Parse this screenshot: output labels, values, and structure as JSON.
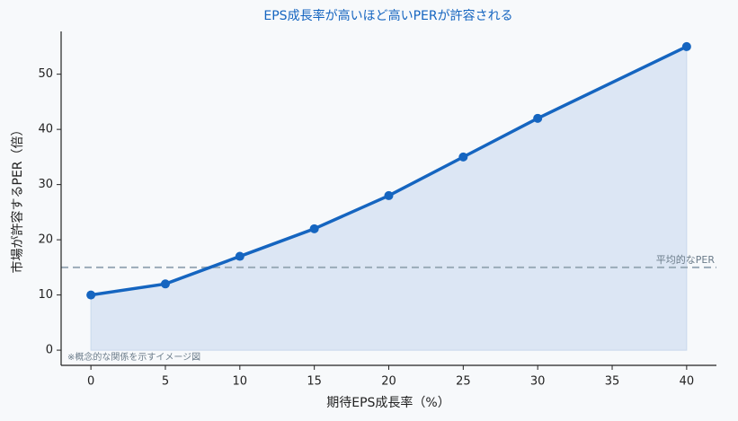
{
  "chart_data": {
    "type": "line",
    "title": "EPS成長率が高いほど高いPERが許容される",
    "x_label": "期待EPS成長率（%）",
    "y_label": "市場が許容するPER（倍）",
    "x": [
      0,
      5,
      10,
      15,
      20,
      25,
      30,
      40
    ],
    "series": [
      {
        "name": "PER",
        "color": "#1565c0",
        "values": [
          10,
          12,
          17,
          22,
          28,
          35,
          42,
          55
        ]
      }
    ],
    "area_fill": "#dce6f4",
    "reference_line": {
      "value": 15,
      "label": "平均的なPER",
      "color": "#9aabb8"
    },
    "annotation": "※概念的な関係を示すイメージ図",
    "xlim": [
      -2,
      42
    ],
    "xticks": [
      0,
      5,
      10,
      15,
      20,
      25,
      30,
      35,
      40
    ],
    "ylim": [
      -2.75,
      57.75
    ],
    "yticks": [
      0,
      10,
      20,
      30,
      40,
      50
    ]
  }
}
